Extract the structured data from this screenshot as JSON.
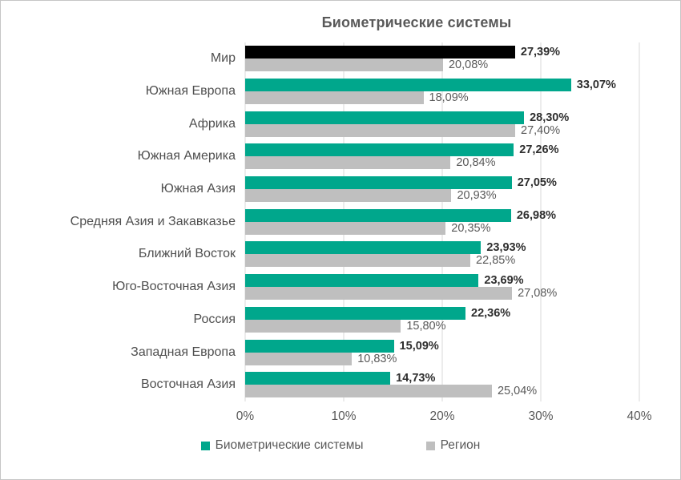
{
  "window": {
    "background": "#ffffff",
    "border_color": "#c6c6c6"
  },
  "chart_data": {
    "type": "bar",
    "orientation": "horizontal",
    "title": "Биометрические системы",
    "categories": [
      "Мир",
      "Южная Европа",
      "Африка",
      "Южная Америка",
      "Южная Азия",
      "Средняя Азия и Закавказье",
      "Ближний Восток",
      "Юго-Восточная Азия",
      "Россия",
      "Западная Европа",
      "Восточная Азия"
    ],
    "series": [
      {
        "name": "Биометрические системы",
        "color": "#00A78C",
        "values": [
          27.39,
          33.07,
          28.3,
          27.26,
          27.05,
          26.98,
          23.93,
          23.69,
          22.36,
          15.09,
          14.73
        ],
        "labels": [
          "27,39%",
          "33,07%",
          "28,30%",
          "27,26%",
          "27,05%",
          "26,98%",
          "23,93%",
          "23,69%",
          "22,36%",
          "15,09%",
          "14,73%"
        ],
        "label_style": "bold"
      },
      {
        "name": "Регион",
        "color": "#BFBFBF",
        "values": [
          20.08,
          18.09,
          27.4,
          20.84,
          20.93,
          20.35,
          22.85,
          27.08,
          15.8,
          10.83,
          25.04
        ],
        "labels": [
          "20,08%",
          "18,09%",
          "27,40%",
          "20,84%",
          "20,93%",
          "20,35%",
          "22,85%",
          "27,08%",
          "15,80%",
          "10,83%",
          "25,04%"
        ],
        "label_style": "regular"
      }
    ],
    "highlight": {
      "category": "Мир",
      "series": "Биометрические системы",
      "color": "#000000"
    },
    "xlim": [
      0,
      40
    ],
    "x_ticks": [
      "0%",
      "10%",
      "20%",
      "30%",
      "40%"
    ],
    "grid": "vertical",
    "gridline_color": "#d9d9d9",
    "legend_position": "bottom"
  }
}
